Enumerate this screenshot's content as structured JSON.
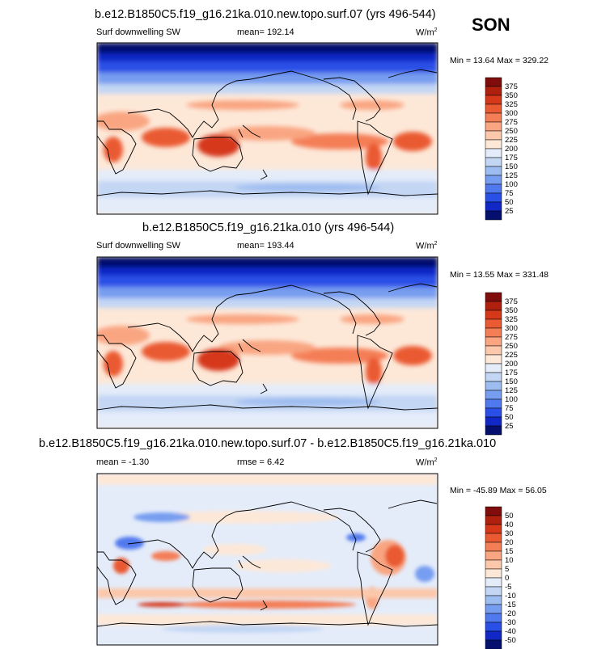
{
  "season": "SON",
  "panels": [
    {
      "title": "b.e12.B1850C5.f19_g16.21ka.010.new.topo.surf.07 (yrs 496-544)",
      "left_label": "Surf downwelling SW",
      "middle_label": "mean= 192.14",
      "rmse_label": "",
      "units": "W/m",
      "units_sup": "2",
      "minmax": "Min =  13.64 Max = 329.22"
    },
    {
      "title": "b.e12.B1850C5.f19_g16.21ka.010 (yrs 496-544)",
      "left_label": "Surf downwelling SW",
      "middle_label": "mean= 193.44",
      "rmse_label": "",
      "units": "W/m",
      "units_sup": "2",
      "minmax": "Min =  13.55 Max = 331.48"
    },
    {
      "title": "b.e12.B1850C5.f19_g16.21ka.010.new.topo.surf.07 - b.e12.B1850C5.f19_g16.21ka.010",
      "left_label": "mean =  -1.30",
      "middle_label": "",
      "rmse_label": "rmse =   6.42",
      "units": "W/m",
      "units_sup": "2",
      "minmax": "Min = -45.89 Max =  56.05"
    }
  ],
  "colorbars": [
    {
      "labels": [
        "375",
        "350",
        "325",
        "300",
        "275",
        "250",
        "225",
        "200",
        "175",
        "150",
        "125",
        "100",
        "75",
        "50",
        "25"
      ],
      "colors": [
        "#800d0b",
        "#b0200f",
        "#d6381a",
        "#ea5a33",
        "#f47e56",
        "#f9a581",
        "#fcc8ab",
        "#fde8d8",
        "#e4ecfa",
        "#c3d6f4",
        "#9dbcf0",
        "#779df0",
        "#5179ee",
        "#2a4fe6",
        "#1128c6",
        "#05106e"
      ]
    },
    {
      "labels": [
        "375",
        "350",
        "325",
        "300",
        "275",
        "250",
        "225",
        "200",
        "175",
        "150",
        "125",
        "100",
        "75",
        "50",
        "25"
      ],
      "colors": [
        "#800d0b",
        "#b0200f",
        "#d6381a",
        "#ea5a33",
        "#f47e56",
        "#f9a581",
        "#fcc8ab",
        "#fde8d8",
        "#e4ecfa",
        "#c3d6f4",
        "#9dbcf0",
        "#779df0",
        "#5179ee",
        "#2a4fe6",
        "#1128c6",
        "#05106e"
      ]
    },
    {
      "labels": [
        "50",
        "40",
        "30",
        "20",
        "15",
        "10",
        "5",
        "0",
        "-5",
        "-10",
        "-15",
        "-20",
        "-30",
        "-40",
        "-50"
      ],
      "colors": [
        "#800d0b",
        "#b0200f",
        "#d6381a",
        "#ea5a33",
        "#f47e56",
        "#f9a581",
        "#fcc8ab",
        "#fde8d8",
        "#e4ecfa",
        "#c3d6f4",
        "#9dbcf0",
        "#779df0",
        "#5179ee",
        "#2a4fe6",
        "#1128c6",
        "#05106e"
      ]
    }
  ],
  "chart_data": [
    {
      "type": "heatmap",
      "title": "b.e12.B1850C5.f19_g16.21ka.010.new.topo.surf.07 (yrs 496-544)",
      "variable": "Surf downwelling SW",
      "units": "W/m2",
      "mean": 192.14,
      "min": 13.64,
      "max": 329.22,
      "contour_levels": [
        25,
        50,
        75,
        100,
        125,
        150,
        175,
        200,
        225,
        250,
        275,
        300,
        325,
        350,
        375
      ]
    },
    {
      "type": "heatmap",
      "title": "b.e12.B1850C5.f19_g16.21ka.010 (yrs 496-544)",
      "variable": "Surf downwelling SW",
      "units": "W/m2",
      "mean": 193.44,
      "min": 13.55,
      "max": 331.48,
      "contour_levels": [
        25,
        50,
        75,
        100,
        125,
        150,
        175,
        200,
        225,
        250,
        275,
        300,
        325,
        350,
        375
      ]
    },
    {
      "type": "heatmap",
      "title": "b.e12.B1850C5.f19_g16.21ka.010.new.topo.surf.07 - b.e12.B1850C5.f19_g16.21ka.010",
      "units": "W/m2",
      "mean": -1.3,
      "rmse": 6.42,
      "min": -45.89,
      "max": 56.05,
      "contour_levels": [
        -50,
        -40,
        -30,
        -20,
        -15,
        -10,
        -5,
        0,
        5,
        10,
        15,
        20,
        30,
        40,
        50
      ]
    }
  ]
}
